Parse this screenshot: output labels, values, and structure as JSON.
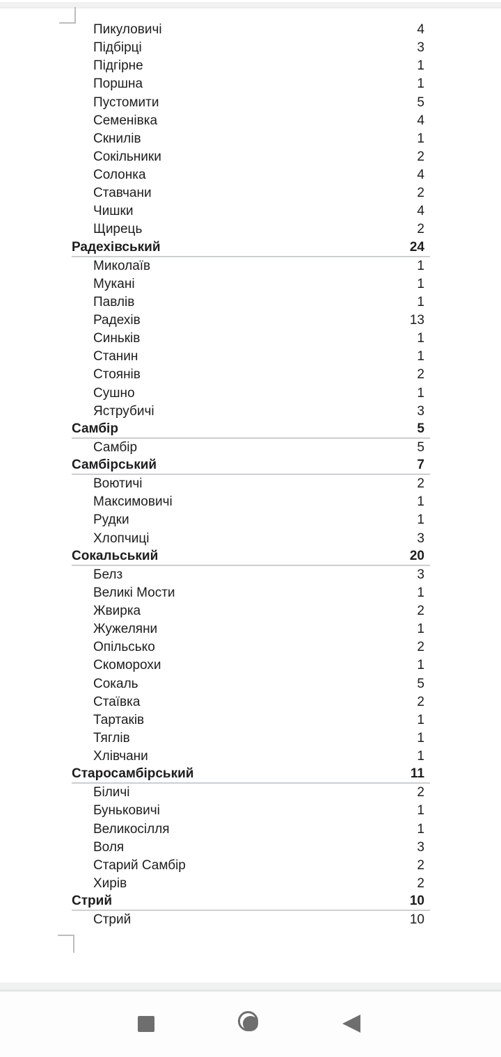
{
  "document": {
    "rows": [
      {
        "type": "item",
        "name": "Пикуловичі",
        "value": "4"
      },
      {
        "type": "item",
        "name": "Підбірці",
        "value": "3"
      },
      {
        "type": "item",
        "name": "Підгірне",
        "value": "1"
      },
      {
        "type": "item",
        "name": "Поршна",
        "value": "1"
      },
      {
        "type": "item",
        "name": "Пустомити",
        "value": "5"
      },
      {
        "type": "item",
        "name": "Семенівка",
        "value": "4"
      },
      {
        "type": "item",
        "name": "Скнилів",
        "value": "1"
      },
      {
        "type": "item",
        "name": "Сокільники",
        "value": "2"
      },
      {
        "type": "item",
        "name": "Солонка",
        "value": "4"
      },
      {
        "type": "item",
        "name": "Ставчани",
        "value": "2"
      },
      {
        "type": "item",
        "name": "Чишки",
        "value": "4"
      },
      {
        "type": "item",
        "name": "Щирець",
        "value": "2"
      },
      {
        "type": "header",
        "name": "Радехівський",
        "value": "24"
      },
      {
        "type": "item",
        "name": "Миколаїв",
        "value": "1"
      },
      {
        "type": "item",
        "name": "Мукані",
        "value": "1"
      },
      {
        "type": "item",
        "name": "Павлів",
        "value": "1"
      },
      {
        "type": "item",
        "name": "Радехів",
        "value": "13"
      },
      {
        "type": "item",
        "name": "Синьків",
        "value": "1"
      },
      {
        "type": "item",
        "name": "Станин",
        "value": "1"
      },
      {
        "type": "item",
        "name": "Стоянів",
        "value": "2"
      },
      {
        "type": "item",
        "name": "Сушно",
        "value": "1"
      },
      {
        "type": "item",
        "name": "Яструбичі",
        "value": "3"
      },
      {
        "type": "header",
        "name": "Самбір",
        "value": "5"
      },
      {
        "type": "item",
        "name": "Самбір",
        "value": "5"
      },
      {
        "type": "header",
        "name": "Самбірський",
        "value": "7"
      },
      {
        "type": "item",
        "name": "Воютичі",
        "value": "2"
      },
      {
        "type": "item",
        "name": "Максимовичі",
        "value": "1"
      },
      {
        "type": "item",
        "name": "Рудки",
        "value": "1"
      },
      {
        "type": "item",
        "name": "Хлопчиці",
        "value": "3"
      },
      {
        "type": "header",
        "name": "Сокальський",
        "value": "20"
      },
      {
        "type": "item",
        "name": "Белз",
        "value": "3"
      },
      {
        "type": "item",
        "name": "Великі Мости",
        "value": "1"
      },
      {
        "type": "item",
        "name": "Жвирка",
        "value": "2"
      },
      {
        "type": "item",
        "name": "Жужеляни",
        "value": "1"
      },
      {
        "type": "item",
        "name": "Опільсько",
        "value": "2"
      },
      {
        "type": "item",
        "name": "Скоморохи",
        "value": "1"
      },
      {
        "type": "item",
        "name": "Сокаль",
        "value": "5"
      },
      {
        "type": "item",
        "name": "Стаївка",
        "value": "2"
      },
      {
        "type": "item",
        "name": "Тартаків",
        "value": "1"
      },
      {
        "type": "item",
        "name": "Тяглів",
        "value": "1"
      },
      {
        "type": "item",
        "name": "Хлівчани",
        "value": "1"
      },
      {
        "type": "header",
        "name": "Старосамбірський",
        "value": "11"
      },
      {
        "type": "item",
        "name": "Біличі",
        "value": "2"
      },
      {
        "type": "item",
        "name": "Буньковичі",
        "value": "1"
      },
      {
        "type": "item",
        "name": "Великосілля",
        "value": "1"
      },
      {
        "type": "item",
        "name": "Воля",
        "value": "3"
      },
      {
        "type": "item",
        "name": "Старий Самбір",
        "value": "2"
      },
      {
        "type": "item",
        "name": "Хирів",
        "value": "2"
      },
      {
        "type": "header",
        "name": "Стрий",
        "value": "10"
      },
      {
        "type": "item",
        "name": "Стрий",
        "value": "10"
      }
    ]
  },
  "navbar": {
    "icons": [
      "recents-square-icon",
      "home-circle-icon",
      "back-triangle-icon"
    ]
  },
  "colors": {
    "text": "#1d1d1d",
    "header_rule": "#c9cfd4",
    "gap_strip": "#f0f1f1",
    "corner_mark": "#bdbdbd",
    "nav_icon": "#6e6e6e",
    "navbar_bg": "#fdfdfd"
  }
}
